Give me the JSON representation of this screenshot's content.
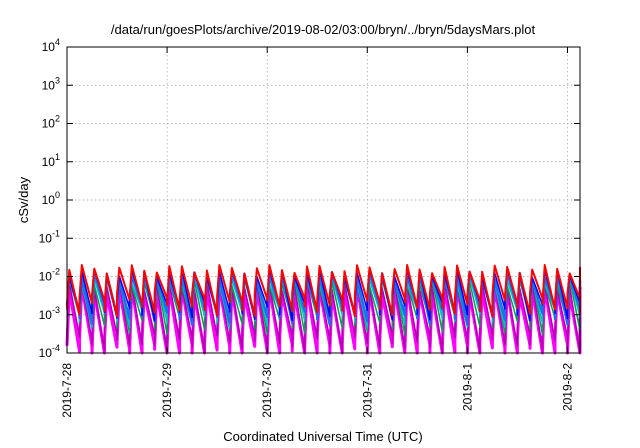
{
  "chart_data": {
    "type": "line",
    "title": "/data/run/goesPlots/archive/2019-08-02/03:00/bryn/../bryn/5daysMars.plot",
    "xlabel": "Coordinated Universal Time (UTC)",
    "ylabel": "cSv/day",
    "yscale": "log",
    "ylim": [
      0.0001,
      10000
    ],
    "xlim": [
      "2019-07-28 00:00",
      "2019-08-02 03:00"
    ],
    "x_ticks": [
      {
        "value": "2019-07-28 00:00",
        "label": "2019-7-28"
      },
      {
        "value": "2019-07-29 00:00",
        "label": "2019-7-29"
      },
      {
        "value": "2019-07-30 00:00",
        "label": "2019-7-30"
      },
      {
        "value": "2019-07-31 00:00",
        "label": "2019-7-31"
      },
      {
        "value": "2019-08-01 00:00",
        "label": "2019-8-1"
      },
      {
        "value": "2019-08-02 00:00",
        "label": "2019-8-2"
      }
    ],
    "y_ticks": [
      {
        "value": 0.0001,
        "base": "10",
        "exp": "-4"
      },
      {
        "value": 0.001,
        "base": "10",
        "exp": "-3"
      },
      {
        "value": 0.01,
        "base": "10",
        "exp": "-2"
      },
      {
        "value": 0.1,
        "base": "10",
        "exp": "-1"
      },
      {
        "value": 1,
        "base": "10",
        "exp": "0"
      },
      {
        "value": 10,
        "base": "10",
        "exp": "1"
      },
      {
        "value": 100,
        "base": "10",
        "exp": "2"
      },
      {
        "value": 1000,
        "base": "10",
        "exp": "3"
      },
      {
        "value": 10000,
        "base": "10",
        "exp": "4"
      }
    ],
    "grid": true,
    "series": [
      {
        "color": "#ff00ff",
        "peak": 0.0045,
        "trough": 0.00011,
        "width": 3
      },
      {
        "color": "#b000b0",
        "peak": 0.0058,
        "trough": 0.0002,
        "width": 1.5
      },
      {
        "color": "#00a050",
        "peak": 0.0075,
        "trough": 0.0006,
        "width": 1.5
      },
      {
        "color": "#00c0c0",
        "peak": 0.0085,
        "trough": 0.0009,
        "width": 1.5
      },
      {
        "color": "#1e6ef0",
        "peak": 0.0105,
        "trough": 0.0011,
        "width": 2.5
      },
      {
        "color": "#0000ff",
        "peak": 0.0125,
        "trough": 0.0014,
        "width": 1.5
      },
      {
        "color": "#ff0000",
        "peak": 0.016,
        "trough": 0.0018,
        "width": 2
      }
    ],
    "sawtooth": {
      "period_hours": 3,
      "start": "2019-07-28 00:00"
    }
  }
}
